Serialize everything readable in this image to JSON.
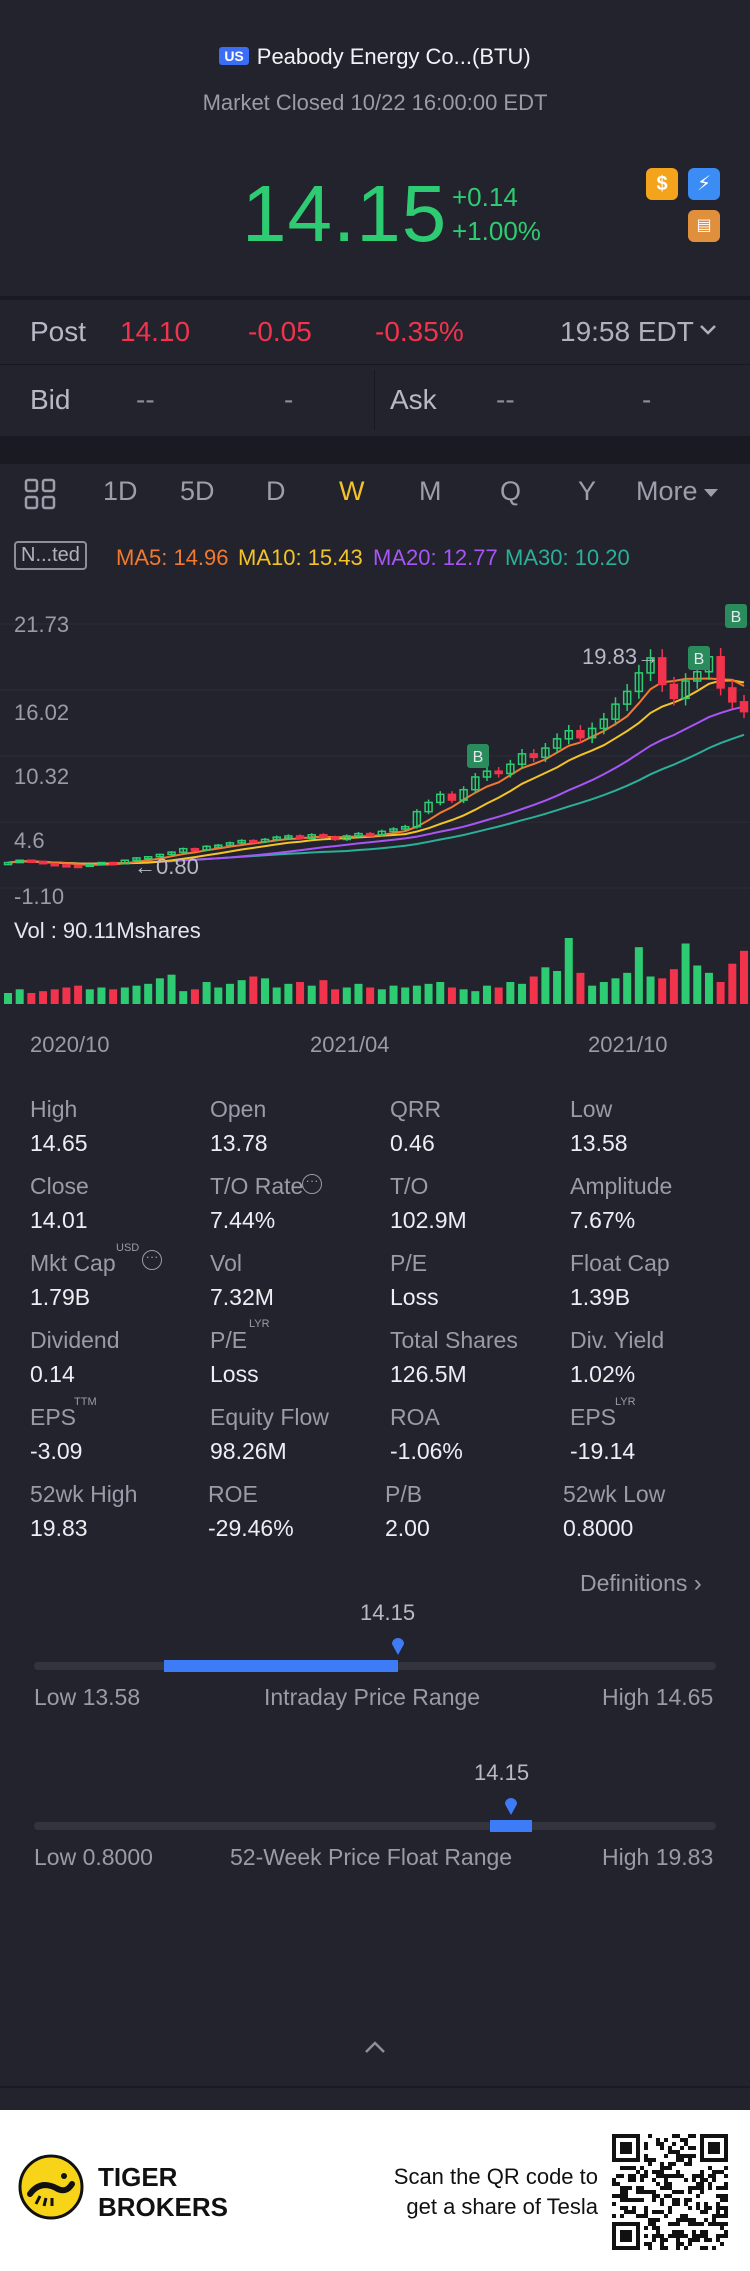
{
  "header": {
    "market_badge": "US",
    "title": "Peabody Energy Co...(BTU)",
    "status": "Market Closed 10/22 16:00:00 EDT",
    "price": "14.15",
    "change": "+0.14",
    "change_pct": "+1.00%"
  },
  "post": {
    "label": "Post",
    "price": "14.10",
    "change": "-0.05",
    "change_pct": "-0.35%",
    "time": "19:58 EDT"
  },
  "bid": {
    "label": "Bid",
    "price": "--",
    "size": "-"
  },
  "ask": {
    "label": "Ask",
    "price": "--",
    "size": "-"
  },
  "periods": [
    "1D",
    "5D",
    "D",
    "W",
    "M",
    "Q",
    "Y",
    "More"
  ],
  "active_period": "W",
  "ma": {
    "tag": "N...ted",
    "ma5": "MA5: 14.96",
    "ma10": "MA10: 15.43",
    "ma20": "MA20: 12.77",
    "ma30": "MA30: 10.20",
    "colors": {
      "ma5": "#f27a2e",
      "ma10": "#f4c328",
      "ma20": "#a855f7",
      "ma30": "#2ab09a"
    }
  },
  "chart": {
    "y_labels": [
      "21.73",
      "16.02",
      "10.32",
      "-1.10"
    ],
    "y_partial": "4.6",
    "high_marker": "19.83",
    "low_marker": "0.80",
    "volume_label": "Vol  : 90.11Mshares",
    "x_labels": [
      "2020/10",
      "2021/04",
      "2021/10"
    ],
    "buy_marker": "B"
  },
  "chart_data": {
    "type": "candlestick",
    "period": "W",
    "x_ticks": [
      "2020/10",
      "2021/04",
      "2021/10"
    ],
    "y_ticks": [
      21.73,
      16.02,
      10.32,
      -1.1
    ],
    "close_series": [
      1.1,
      1.3,
      1.2,
      1.0,
      0.9,
      0.85,
      0.8,
      0.95,
      1.1,
      1.0,
      1.3,
      1.5,
      1.6,
      1.8,
      2.0,
      2.3,
      2.2,
      2.5,
      2.6,
      2.8,
      3.0,
      2.9,
      3.1,
      3.3,
      3.4,
      3.2,
      3.5,
      3.3,
      3.1,
      3.4,
      3.6,
      3.5,
      3.8,
      4.0,
      4.2,
      5.5,
      6.3,
      7.0,
      6.5,
      7.4,
      8.5,
      9.0,
      8.8,
      9.6,
      10.5,
      10.2,
      11.0,
      11.8,
      12.5,
      11.9,
      12.7,
      13.5,
      14.8,
      15.9,
      17.5,
      18.8,
      16.5,
      15.3,
      16.8,
      17.6,
      18.9,
      16.2,
      15.0,
      14.15
    ],
    "volume": [
      12,
      16,
      12,
      14,
      16,
      18,
      20,
      16,
      18,
      16,
      18,
      20,
      22,
      28,
      32,
      14,
      16,
      24,
      18,
      22,
      26,
      30,
      28,
      18,
      22,
      24,
      20,
      26,
      16,
      18,
      22,
      18,
      16,
      20,
      18,
      20,
      22,
      24,
      18,
      16,
      14,
      20,
      18,
      24,
      22,
      30,
      40,
      36,
      72,
      34,
      20,
      24,
      28,
      34,
      62,
      30,
      28,
      38,
      66,
      42,
      34,
      24,
      44,
      58
    ],
    "ma_legend": {
      "MA5": 14.96,
      "MA10": 15.43,
      "MA20": 12.77,
      "MA30": 10.2
    },
    "high": 19.83,
    "low": 0.8
  },
  "stats": [
    [
      {
        "label": "High",
        "value": "14.65"
      },
      {
        "label": "Open",
        "value": "13.78"
      },
      {
        "label": "QRR",
        "value": "0.46"
      },
      {
        "label": "Low",
        "value": "13.58"
      }
    ],
    [
      {
        "label": "Close",
        "value": "14.01"
      },
      {
        "label": "T/O Rate",
        "value": "7.44%"
      },
      {
        "label": "T/O",
        "value": "102.9M"
      },
      {
        "label": "Amplitude",
        "value": "7.67%"
      }
    ],
    [
      {
        "label": "Mkt Cap",
        "value": "1.79B"
      },
      {
        "label": "Vol",
        "value": "7.32M"
      },
      {
        "label": "P/E",
        "value": "Loss"
      },
      {
        "label": "Float Cap",
        "value": "1.39B"
      }
    ],
    [
      {
        "label": "Dividend",
        "value": "0.14"
      },
      {
        "label": "P/E",
        "value": "Loss"
      },
      {
        "label": "Total Shares",
        "value": "126.5M"
      },
      {
        "label": "Div. Yield",
        "value": "1.02%"
      }
    ],
    [
      {
        "label": "EPS",
        "value": "-3.09"
      },
      {
        "label": "Equity Flow",
        "value": "98.26M"
      },
      {
        "label": "ROA",
        "value": "-1.06%"
      },
      {
        "label": "EPS",
        "value": "-19.14"
      }
    ],
    [
      {
        "label": "52wk High",
        "value": "19.83"
      },
      {
        "label": "ROE",
        "value": "-29.46%"
      },
      {
        "label": "P/B",
        "value": "2.00"
      },
      {
        "label": "52wk Low",
        "value": "0.8000"
      }
    ]
  ],
  "sup": {
    "usd": "USD",
    "lyr": "LYR",
    "ttm": "TTM"
  },
  "definitions": "Definitions",
  "intraday": {
    "marker": "14.15",
    "low": "Low 13.58",
    "title": "Intraday Price Range",
    "high": "High 14.65",
    "position": 0.7
  },
  "week52": {
    "marker": "14.15",
    "low": "Low 0.8000",
    "title": "52-Week Price Float Range",
    "high": "High 19.83",
    "position": 0.7
  },
  "footer": {
    "brand_line1": "TIGER",
    "brand_line2": "BROKERS",
    "cta_line1": "Scan the QR code to",
    "cta_line2": "get a share of Tesla"
  }
}
